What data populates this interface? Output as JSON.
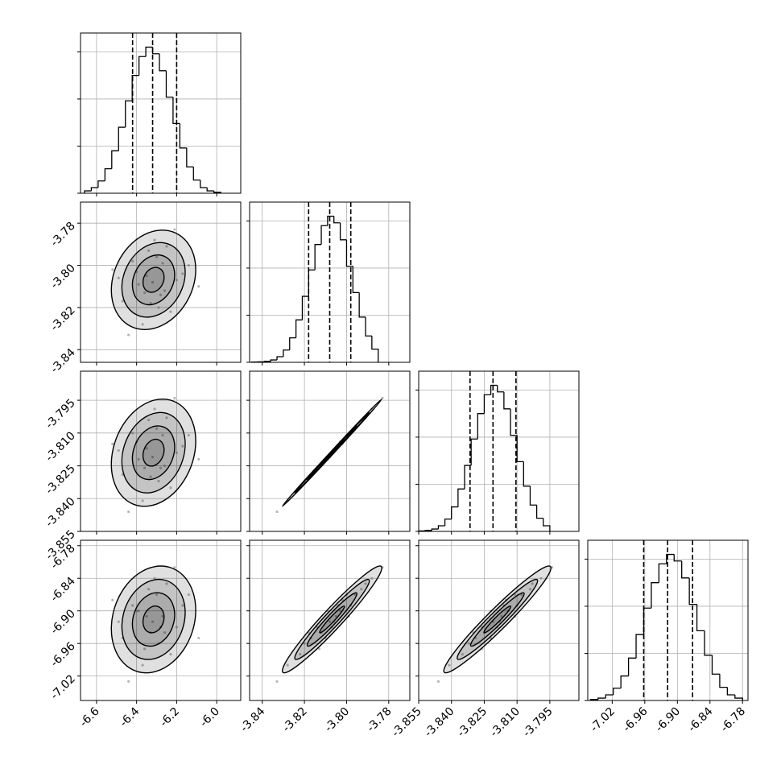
{
  "chart_data": {
    "type": "corner",
    "parameters": [
      {
        "lim": [
          -6.68,
          -5.88
        ],
        "ticks": [
          -6.6,
          -6.4,
          -6.2,
          {
            "value": -6,
            "label": "-6.0"
          }
        ],
        "bins": [
          -6.66,
          -6.626,
          -6.592,
          -6.558,
          -6.524,
          -6.49,
          -6.456,
          -6.422,
          -6.388,
          -6.354,
          -6.32,
          -6.286,
          -6.252,
          -6.218,
          -6.184,
          -6.15,
          -6.116,
          -6.082,
          -6.048,
          -6.014,
          -5.98
        ],
        "counts": [
          25,
          60,
          130,
          260,
          450,
          700,
          980,
          1250,
          1450,
          1550,
          1480,
          1300,
          1020,
          740,
          480,
          280,
          140,
          60,
          25,
          10
        ],
        "quantiles": [
          -6.42,
          -6.32,
          -6.2
        ]
      },
      {
        "lim": [
          -3.846,
          -3.77
        ],
        "ticks": [
          -3.84,
          -3.82,
          {
            "value": -3.8,
            "label": "-3.80"
          },
          -3.78
        ],
        "bins": [
          -3.845,
          -3.842,
          -3.839,
          -3.836,
          -3.833,
          -3.83,
          -3.827,
          -3.824,
          -3.821,
          -3.818,
          -3.815,
          -3.812,
          -3.809,
          -3.806,
          -3.803,
          -3.8,
          -3.797,
          -3.794,
          -3.791,
          -3.788,
          -3.785
        ],
        "counts": [
          3,
          5,
          10,
          25,
          60,
          130,
          260,
          450,
          700,
          980,
          1250,
          1450,
          1550,
          1480,
          1300,
          1020,
          740,
          480,
          280,
          140
        ],
        "quantiles": [
          -3.818,
          -3.808,
          -3.798
        ]
      },
      {
        "lim": [
          -3.855,
          -3.7817
        ],
        "ticks": [
          -3.855,
          {
            "value": -3.84,
            "label": "-3.840"
          },
          -3.825,
          {
            "value": -3.81,
            "label": "-3.810"
          },
          -3.795
        ],
        "bins": [
          -3.855,
          -3.852,
          -3.849,
          -3.846,
          -3.843,
          -3.84,
          -3.837,
          -3.834,
          -3.831,
          -3.828,
          -3.825,
          -3.822,
          -3.819,
          -3.816,
          -3.813,
          -3.81,
          -3.807,
          -3.804,
          -3.801,
          -3.798,
          -3.795
        ],
        "counts": [
          5,
          10,
          25,
          60,
          130,
          260,
          450,
          700,
          980,
          1250,
          1450,
          1550,
          1480,
          1300,
          1020,
          740,
          480,
          280,
          140,
          60
        ],
        "quantiles": [
          -3.8315,
          -3.821,
          -3.8105
        ]
      },
      {
        "lim": [
          -7.065,
          -6.77
        ],
        "ticks": [
          -7.02,
          -6.96,
          {
            "value": -6.9,
            "label": "-6.90"
          },
          -6.84,
          -6.78
        ],
        "bins": [
          -7.06,
          -7.046,
          -7.032,
          -7.018,
          -7.004,
          -6.99,
          -6.976,
          -6.962,
          -6.948,
          -6.934,
          -6.92,
          -6.906,
          -6.892,
          -6.878,
          -6.864,
          -6.85,
          -6.836,
          -6.822,
          -6.808,
          -6.794,
          -6.78
        ],
        "counts": [
          10,
          25,
          60,
          130,
          260,
          450,
          700,
          980,
          1250,
          1450,
          1550,
          1480,
          1300,
          1020,
          740,
          480,
          280,
          140,
          60,
          25
        ],
        "quantiles": [
          -6.962,
          -6.918,
          -6.872
        ]
      }
    ],
    "hist_ylim": [
      0,
      1700
    ],
    "hist_yticks": [
      0,
      500,
      1000,
      1500
    ],
    "grid": true,
    "samples": [
      [
        -6.29,
        -3.82,
        -3.832,
        -6.96
      ],
      [
        -6.4,
        -3.803,
        -3.814,
        -6.9
      ],
      [
        -6.2,
        -3.807,
        -3.819,
        -6.93
      ],
      [
        -6.34,
        -3.793,
        -3.804,
        -6.86
      ],
      [
        -6.26,
        -3.812,
        -3.825,
        -6.94
      ],
      [
        -6.47,
        -3.817,
        -3.829,
        -6.95
      ],
      [
        -6.31,
        -3.788,
        -3.799,
        -6.84
      ],
      [
        -6.37,
        -3.828,
        -3.841,
        -7.0
      ],
      [
        -6.14,
        -3.8,
        -3.811,
        -6.87
      ],
      [
        -6.32,
        -3.808,
        -3.821,
        -6.92
      ],
      [
        -6.42,
        -3.798,
        -3.81,
        -6.89
      ],
      [
        -6.23,
        -3.822,
        -3.835,
        -6.98
      ],
      [
        -6.35,
        -3.805,
        -3.817,
        -6.91
      ],
      [
        -6.28,
        -3.814,
        -3.826,
        -6.93
      ],
      [
        -6.09,
        -3.81,
        -3.822,
        -6.95
      ],
      [
        -6.52,
        -3.802,
        -3.815,
        -6.88
      ],
      [
        -6.3,
        -3.796,
        -3.808,
        -6.87
      ],
      [
        -6.39,
        -3.809,
        -3.822,
        -6.9
      ],
      [
        -6.21,
        -3.783,
        -3.794,
        -6.82
      ],
      [
        -6.44,
        -3.833,
        -3.846,
        -7.03
      ],
      [
        -6.27,
        -3.799,
        -3.811,
        -6.91
      ],
      [
        -6.33,
        -3.818,
        -3.83,
        -6.94
      ],
      [
        -6.17,
        -3.804,
        -3.816,
        -6.89
      ],
      [
        -6.36,
        -3.813,
        -3.826,
        -6.97
      ],
      [
        -6.25,
        -3.791,
        -3.803,
        -6.85
      ],
      [
        -6.49,
        -3.806,
        -3.818,
        -6.92
      ]
    ]
  }
}
